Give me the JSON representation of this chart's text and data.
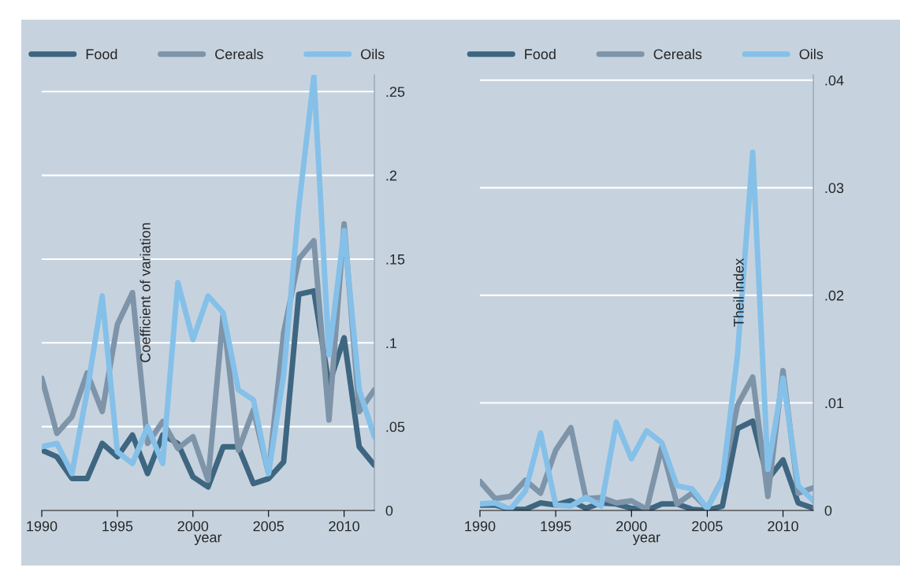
{
  "chart_data": [
    {
      "type": "line",
      "xlabel": "year",
      "ylabel": "Coefficient of variation",
      "legend": "top",
      "grid": "y",
      "marker": "none",
      "line_style": "solid",
      "x": [
        1990,
        1991,
        1992,
        1993,
        1994,
        1995,
        1996,
        1997,
        1998,
        1999,
        2000,
        2001,
        2002,
        2003,
        2004,
        2005,
        2006,
        2007,
        2008,
        2009,
        2010,
        2011,
        2012
      ],
      "xlim": [
        1990,
        2012
      ],
      "xticks": [
        1990,
        1995,
        2000,
        2005,
        2010
      ],
      "ylim": [
        0,
        0.26
      ],
      "yticks": [
        0,
        {
          "value": 0.05,
          "label": ".05"
        },
        {
          "value": 0.1,
          "label": ".1"
        },
        {
          "value": 0.15,
          "label": ".15"
        },
        {
          "value": 0.2,
          "label": ".2"
        },
        {
          "value": 0.25,
          "label": ".25"
        }
      ],
      "series": [
        {
          "name": "Food",
          "color": "#3e6680",
          "values": [
            0.036,
            0.032,
            0.019,
            0.019,
            0.04,
            0.032,
            0.045,
            0.022,
            0.045,
            0.04,
            0.02,
            0.014,
            0.038,
            0.038,
            0.016,
            0.019,
            0.029,
            0.129,
            0.131,
            0.075,
            0.103,
            0.038,
            0.027
          ]
        },
        {
          "name": "Cereals",
          "color": "#7e94a9",
          "values": [
            0.079,
            0.046,
            0.056,
            0.082,
            0.059,
            0.111,
            0.13,
            0.04,
            0.053,
            0.037,
            0.044,
            0.018,
            0.117,
            0.036,
            0.06,
            0.022,
            0.106,
            0.15,
            0.161,
            0.054,
            0.171,
            0.059,
            0.072
          ]
        },
        {
          "name": "Oils",
          "color": "#85c0e9",
          "values": [
            0.038,
            0.04,
            0.022,
            0.071,
            0.128,
            0.035,
            0.028,
            0.05,
            0.028,
            0.136,
            0.102,
            0.128,
            0.118,
            0.072,
            0.066,
            0.022,
            0.081,
            0.181,
            0.259,
            0.093,
            0.167,
            0.072,
            0.044
          ]
        }
      ]
    },
    {
      "type": "line",
      "xlabel": "year",
      "ylabel": "Theil index",
      "legend": "top",
      "grid": "y",
      "marker": "none",
      "line_style": "solid",
      "x": [
        1990,
        1991,
        1992,
        1993,
        1994,
        1995,
        1996,
        1997,
        1998,
        1999,
        2000,
        2001,
        2002,
        2003,
        2004,
        2005,
        2006,
        2007,
        2008,
        2009,
        2010,
        2011,
        2012
      ],
      "xlim": [
        1990,
        2012
      ],
      "xticks": [
        1990,
        1995,
        2000,
        2005,
        2010
      ],
      "ylim": [
        0,
        0.0405
      ],
      "yticks": [
        0,
        {
          "value": 0.01,
          "label": ".01"
        },
        {
          "value": 0.02,
          "label": ".02"
        },
        {
          "value": 0.03,
          "label": ".03"
        },
        {
          "value": 0.04,
          "label": ".04"
        }
      ],
      "series": [
        {
          "name": "Food",
          "color": "#3e6680",
          "values": [
            0.0005,
            0.0005,
            0.0001,
            0.0001,
            0.0007,
            0.0005,
            0.0009,
            0.0002,
            0.0007,
            0.0006,
            0.0002,
            0.0,
            0.0006,
            0.0006,
            0.0001,
            0.0,
            0.0004,
            0.0076,
            0.0083,
            0.0029,
            0.0047,
            0.0007,
            0.0002
          ]
        },
        {
          "name": "Cereals",
          "color": "#7e94a9",
          "values": [
            0.0027,
            0.0011,
            0.0013,
            0.0028,
            0.0016,
            0.0056,
            0.0077,
            0.0011,
            0.0012,
            0.0007,
            0.0009,
            0.0001,
            0.0059,
            0.0006,
            0.0016,
            0.0002,
            0.0029,
            0.0098,
            0.0124,
            0.0013,
            0.013,
            0.0016,
            0.0021
          ]
        },
        {
          "name": "Oils",
          "color": "#85c0e9",
          "values": [
            0.0006,
            0.0007,
            0.0001,
            0.0018,
            0.0072,
            0.0005,
            0.0004,
            0.0012,
            0.0004,
            0.0082,
            0.0048,
            0.0074,
            0.0063,
            0.0023,
            0.002,
            0.0002,
            0.0028,
            0.0145,
            0.0333,
            0.0038,
            0.0123,
            0.0023,
            0.0009
          ]
        }
      ]
    }
  ]
}
